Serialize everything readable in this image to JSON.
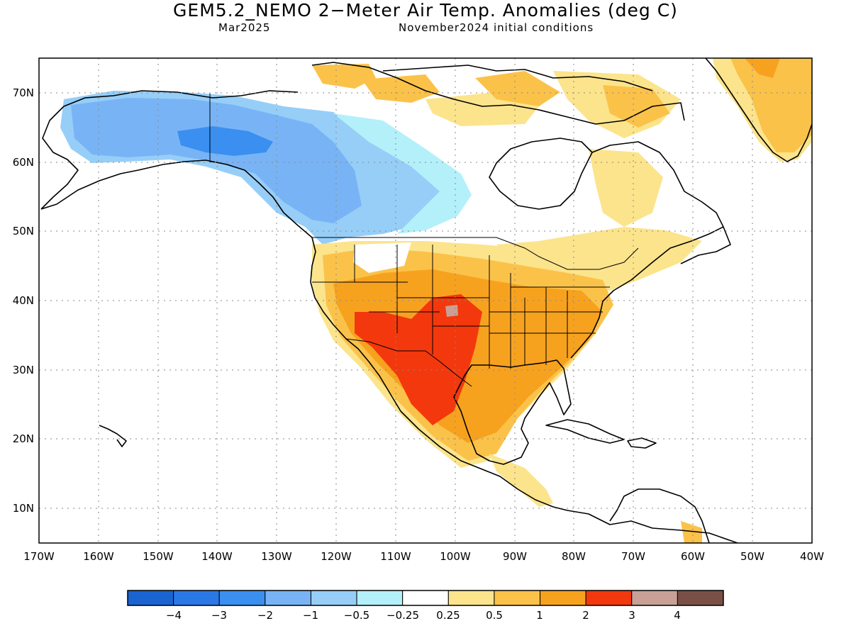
{
  "title": "GEM5.2_NEMO 2−Meter Air Temp. Anomalies (deg C)",
  "subtitle_left": "Mar2025",
  "subtitle_right": "November2024 initial conditions",
  "lat_labels": [
    "70N",
    "60N",
    "50N",
    "40N",
    "30N",
    "20N",
    "10N"
  ],
  "lon_labels": [
    "170W",
    "160W",
    "150W",
    "140W",
    "130W",
    "120W",
    "110W",
    "100W",
    "90W",
    "80W",
    "70W",
    "60W",
    "50W",
    "40W"
  ],
  "colorbar": {
    "colors": [
      "#1a64d2",
      "#2a78e6",
      "#3a8ff0",
      "#78b4f5",
      "#96cef8",
      "#b4f0fa",
      "#ffffff",
      "#fce48c",
      "#fbc24a",
      "#f7a21e",
      "#f3380d",
      "#c8a096",
      "#7a5046"
    ],
    "labels": [
      "−4",
      "−3",
      "−2",
      "−1",
      "−0.5",
      "−0.25",
      "0.25",
      "0.5",
      "1",
      "2",
      "3",
      "4"
    ]
  }
}
